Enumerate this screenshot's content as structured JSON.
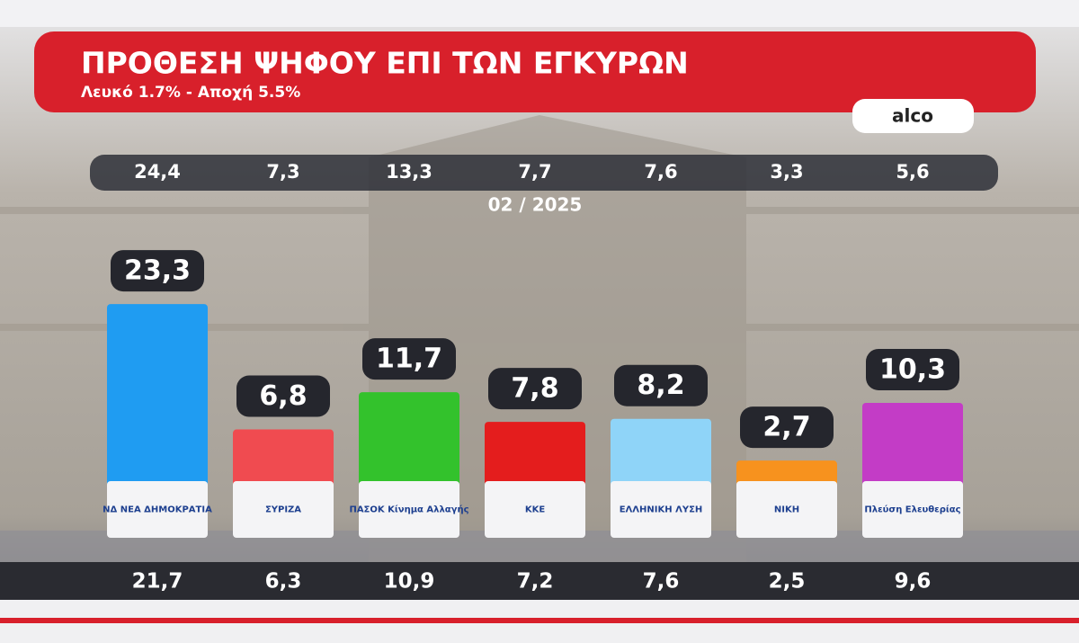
{
  "chart_data": {
    "type": "bar",
    "title": "ΠΡΟΘΕΣΗ ΨΗΦΟΥ ΕΠΙ ΤΩΝ ΕΓΚΥΡΩΝ",
    "subtitle": "Λευκό 1.7% - Αποχή  5.5%",
    "source": "alco",
    "categories": [
      "ΝΔ ΝΕΑ ΔΗΜΟΚΡΑΤΙΑ",
      "ΣΥΡΙΖΑ",
      "ΠΑΣΟΚ Κίνημα Αλλαγής",
      "ΚΚΕ",
      "ΕΛΛΗΝΙΚΗ ΛΥΣΗ",
      "ΝΙΚΗ",
      "Πλεύση Ελευθερίας"
    ],
    "series": [
      {
        "name": "02 / 2025",
        "values": [
          24.4,
          7.3,
          13.3,
          7.7,
          7.6,
          3.3,
          5.6
        ],
        "value_labels": [
          "24,4",
          "7,3",
          "13,3",
          "7,7",
          "7,6",
          "3,3",
          "5,6"
        ]
      },
      {
        "values": [
          23.3,
          6.8,
          11.7,
          7.8,
          8.2,
          2.7,
          10.3
        ],
        "value_labels": [
          "23,3",
          "6,8",
          "11,7",
          "7,8",
          "8,2",
          "2,7",
          "10,3"
        ],
        "colors": [
          "#1f9cf2",
          "#f04b50",
          "#33c22c",
          "#e41d1d",
          "#8fd4f8",
          "#f7921e",
          "#c33cc6"
        ]
      },
      {
        "values": [
          21.7,
          6.3,
          10.9,
          7.2,
          7.6,
          2.5,
          9.6
        ],
        "value_labels": [
          "21,7",
          "6,3",
          "10,9",
          "7,2",
          "7,6",
          "2,5",
          "9,6"
        ]
      }
    ]
  }
}
